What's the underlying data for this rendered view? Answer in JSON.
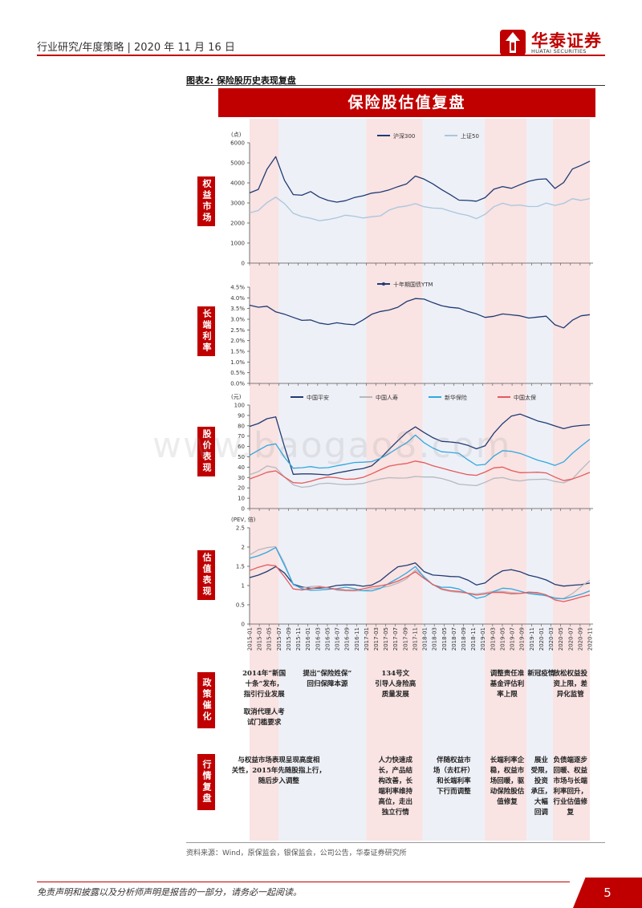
{
  "header": {
    "text": "行业研究/年度策略 | 2020 年 11 月 16 日"
  },
  "logo": {
    "cn": "华泰证券",
    "en": "HUATAI SECURITIES",
    "color": "#c00000"
  },
  "figure": {
    "label": "图表2:  保险股历史表现复盘",
    "banner": "保险股估值复盘"
  },
  "watermark": "www.baogao8.com",
  "colors": {
    "accent": "#c00000",
    "shade": "#f9e3e3",
    "shade_alt": "#eef0f7",
    "hs300": "#1f3b73",
    "sz50": "#a9c6dc",
    "yield": "#1f3b73",
    "pingan": "#1f3b73",
    "life": "#b6b8c0",
    "xinhua": "#2fa8e0",
    "cpic": "#e55a5a"
  },
  "chart_data": [
    {
      "type": "line",
      "section_label": "权益市场",
      "unit_label": "(点)",
      "y_ticks": [
        "0",
        "1000",
        "2000",
        "3000",
        "4000",
        "5000",
        "6000"
      ],
      "ylim": [
        0,
        6000
      ],
      "series": [
        {
          "name": "沪深300",
          "key": "hs300",
          "values": [
            3500,
            3600,
            4600,
            5300,
            4200,
            3500,
            3400,
            3500,
            3200,
            3100,
            3100,
            3200,
            3300,
            3300,
            3400,
            3500,
            3700,
            3900,
            4000,
            4300,
            4100,
            3900,
            3700,
            3500,
            3200,
            3100,
            3000,
            3200,
            3700,
            3900,
            3800,
            3900,
            4000,
            4100,
            4200,
            3800,
            4100,
            4700,
            4800,
            5000
          ]
        },
        {
          "name": "上证50",
          "key": "sz50",
          "values": [
            2500,
            2700,
            3100,
            3300,
            2900,
            2400,
            2300,
            2300,
            2200,
            2200,
            2200,
            2300,
            2300,
            2300,
            2400,
            2400,
            2600,
            2700,
            2800,
            3000,
            2900,
            2800,
            2700,
            2500,
            2400,
            2400,
            2300,
            2500,
            2800,
            2900,
            2800,
            2900,
            2900,
            2900,
            3000,
            2800,
            2900,
            3200,
            3200,
            3300
          ]
        }
      ]
    },
    {
      "type": "line",
      "section_label": "长端利率",
      "y_ticks": [
        "0.0%",
        "0.5%",
        "1.0%",
        "1.5%",
        "2.0%",
        "2.5%",
        "3.0%",
        "3.5%",
        "4.0%",
        "4.5%"
      ],
      "ylim": [
        0,
        4.5
      ],
      "series": [
        {
          "name": "十年期国债YTM",
          "key": "yield",
          "values": [
            3.6,
            3.5,
            3.6,
            3.4,
            3.3,
            3.1,
            2.9,
            2.9,
            2.8,
            2.8,
            2.9,
            2.8,
            2.7,
            2.9,
            3.2,
            3.4,
            3.5,
            3.6,
            3.8,
            3.9,
            3.9,
            3.8,
            3.7,
            3.6,
            3.5,
            3.3,
            3.2,
            3.1,
            3.2,
            3.3,
            3.2,
            3.1,
            3.0,
            3.1,
            3.2,
            2.8,
            2.6,
            2.9,
            3.1,
            3.2
          ]
        }
      ]
    },
    {
      "type": "line",
      "section_label": "股价表现",
      "unit_label": "(元)",
      "y_ticks": [
        "0",
        "10",
        "20",
        "30",
        "40",
        "50",
        "60",
        "70",
        "80",
        "90",
        "100"
      ],
      "ylim": [
        0,
        100
      ],
      "series": [
        {
          "name": "中国平安",
          "key": "pingan",
          "values": [
            78,
            82,
            88,
            90,
            60,
            32,
            32,
            33,
            34,
            34,
            35,
            35,
            36,
            38,
            42,
            50,
            58,
            65,
            72,
            78,
            74,
            70,
            66,
            64,
            62,
            60,
            58,
            62,
            74,
            82,
            88,
            90,
            88,
            86,
            84,
            80,
            76,
            78,
            80,
            82
          ]
        },
        {
          "name": "中国人寿",
          "key": "life",
          "values": [
            34,
            36,
            40,
            38,
            30,
            24,
            22,
            22,
            23,
            23,
            23,
            24,
            25,
            25,
            26,
            27,
            29,
            30,
            31,
            32,
            30,
            29,
            28,
            27,
            25,
            24,
            22,
            24,
            28,
            30,
            29,
            28,
            28,
            27,
            27,
            26,
            26,
            30,
            38,
            45
          ]
        },
        {
          "name": "新华保险",
          "key": "xinhua",
          "values": [
            50,
            56,
            62,
            64,
            50,
            38,
            38,
            40,
            40,
            41,
            42,
            42,
            43,
            44,
            46,
            50,
            54,
            58,
            62,
            70,
            64,
            60,
            56,
            54,
            52,
            46,
            42,
            44,
            52,
            56,
            54,
            52,
            50,
            48,
            46,
            42,
            44,
            52,
            60,
            68
          ]
        },
        {
          "name": "中国太保",
          "key": "cpic",
          "values": [
            30,
            32,
            34,
            35,
            30,
            26,
            26,
            27,
            28,
            29,
            29,
            29,
            30,
            31,
            33,
            36,
            40,
            43,
            45,
            47,
            44,
            40,
            38,
            37,
            36,
            34,
            32,
            34,
            38,
            40,
            38,
            36,
            35,
            34,
            33,
            30,
            28,
            30,
            32,
            34
          ]
        }
      ]
    },
    {
      "type": "line",
      "section_label": "估值表现",
      "unit_label": "(PEV, 倍)",
      "y_ticks": [
        "0",
        "0.5",
        "1",
        "1.5",
        "2",
        "2.5"
      ],
      "ylim": [
        0,
        2.5
      ],
      "series": [
        {
          "name": "中国平安",
          "key": "pingan",
          "values": [
            1.2,
            1.3,
            1.4,
            1.5,
            1.3,
            1.0,
            0.95,
            0.95,
            0.97,
            0.97,
            0.98,
            0.98,
            1.0,
            1.0,
            1.05,
            1.15,
            1.3,
            1.45,
            1.5,
            1.6,
            1.4,
            1.3,
            1.25,
            1.2,
            1.2,
            1.15,
            1.05,
            1.1,
            1.25,
            1.35,
            1.38,
            1.36,
            1.3,
            1.25,
            1.15,
            1.0,
            0.95,
            1.0,
            1.05,
            1.1
          ]
        },
        {
          "name": "中国人寿",
          "key": "life",
          "values": [
            1.8,
            1.9,
            1.95,
            2.0,
            1.6,
            1.05,
            0.95,
            0.95,
            0.95,
            0.93,
            0.9,
            0.9,
            0.88,
            0.85,
            0.88,
            0.92,
            1.0,
            1.1,
            1.2,
            1.4,
            1.2,
            1.0,
            0.9,
            0.88,
            0.85,
            0.8,
            0.75,
            0.78,
            0.85,
            0.88,
            0.85,
            0.8,
            0.78,
            0.75,
            0.72,
            0.68,
            0.7,
            0.8,
            0.95,
            1.1
          ]
        },
        {
          "name": "新华保险",
          "key": "xinhua",
          "values": [
            1.7,
            1.8,
            1.9,
            2.0,
            1.5,
            1.0,
            0.9,
            0.9,
            0.92,
            0.92,
            0.9,
            0.92,
            0.9,
            0.88,
            0.9,
            0.95,
            1.05,
            1.15,
            1.3,
            1.5,
            1.25,
            1.05,
            0.95,
            0.92,
            0.88,
            0.8,
            0.7,
            0.75,
            0.85,
            0.9,
            0.88,
            0.85,
            0.82,
            0.8,
            0.75,
            0.65,
            0.62,
            0.7,
            0.8,
            0.9
          ]
        },
        {
          "name": "中国太保",
          "key": "cpic",
          "values": [
            1.4,
            1.45,
            1.5,
            1.5,
            1.25,
            0.95,
            0.9,
            0.9,
            0.92,
            0.92,
            0.92,
            0.92,
            0.9,
            0.9,
            0.93,
            0.97,
            1.05,
            1.15,
            1.25,
            1.35,
            1.15,
            1.0,
            0.92,
            0.9,
            0.88,
            0.8,
            0.72,
            0.75,
            0.82,
            0.85,
            0.82,
            0.8,
            0.8,
            0.78,
            0.75,
            0.65,
            0.62,
            0.65,
            0.68,
            0.72
          ]
        }
      ]
    }
  ],
  "x_ticks": [
    "2015-01",
    "2015-03",
    "2015-05",
    "2015-07",
    "2015-09",
    "2015-11",
    "2016-01",
    "2016-03",
    "2016-05",
    "2016-07",
    "2016-09",
    "2016-11",
    "2017-01",
    "2017-03",
    "2017-05",
    "2017-07",
    "2017-09",
    "2017-11",
    "2018-01",
    "2018-03",
    "2018-05",
    "2018-07",
    "2018-09",
    "2018-11",
    "2019-01",
    "2019-03",
    "2019-05",
    "2019-07",
    "2019-09",
    "2019-11",
    "2020-01",
    "2020-03",
    "2020-05",
    "2020-07",
    "2020-09",
    "2020-11"
  ],
  "shaded_periods": [
    {
      "from": 0,
      "to": 3,
      "kind": "red"
    },
    {
      "from": 3,
      "to": 12,
      "kind": "blue"
    },
    {
      "from": 12,
      "to": 17.8,
      "kind": "red"
    },
    {
      "from": 17.8,
      "to": 24.2,
      "kind": "blue"
    },
    {
      "from": 24.2,
      "to": 28.5,
      "kind": "red"
    },
    {
      "from": 28.5,
      "to": 31.2,
      "kind": "blue"
    },
    {
      "from": 31.2,
      "to": 35,
      "kind": "red"
    }
  ],
  "policy": {
    "label": "政策催化",
    "notes": [
      {
        "lines": [
          "2014年“新国",
          "十条”发布，",
          "指引行业发展"
        ],
        "col": 1.5
      },
      {
        "lines": [
          "取消代理人考",
          "试门槛要求"
        ],
        "col": 1.5,
        "row": 2
      },
      {
        "lines": [
          "提出“保险姓保”",
          "回归保障本源"
        ],
        "col": 8
      },
      {
        "lines": [
          "134号文",
          "引导人身险高",
          "质量发展"
        ],
        "col": 15
      },
      {
        "lines": [
          "调整责任准",
          "基金评估利",
          "率上限"
        ],
        "col": 26.5
      },
      {
        "lines": [
          "新冠疫情"
        ],
        "col": 30
      },
      {
        "lines": [
          "放松权益投",
          "资上限，差",
          "异化监管"
        ],
        "col": 33
      }
    ]
  },
  "trend": {
    "label": "行情复盘",
    "notes": [
      {
        "lines": [
          "与权益市场表现呈现高度相",
          "关性，2015年先随股指上行，",
          "随后步入调整"
        ],
        "col": 3
      },
      {
        "lines": [
          "人力快速成",
          "长，产品结",
          "构改善，长",
          "端利率维持",
          "高位，走出",
          "独立行情"
        ],
        "col": 15
      },
      {
        "lines": [
          "伴随权益市",
          "场（去杠杆）",
          "和长端利率",
          "下行而调整"
        ],
        "col": 21
      },
      {
        "lines": [
          "长端利率企",
          "稳，权益市",
          "场回暖，驱",
          "动保险股估",
          "值修复"
        ],
        "col": 26.5
      },
      {
        "lines": [
          "展业",
          "受限，",
          "投资",
          "承压，",
          "大幅",
          "回调"
        ],
        "col": 30
      },
      {
        "lines": [
          "负债端逐步",
          "回暖、权益",
          "市场与长端",
          "利率回升，",
          "行业估值修",
          "复"
        ],
        "col": 33
      }
    ]
  },
  "source": "资料来源：Wind，原保监会，银保监会，公司公告，华泰证券研究所",
  "footer": {
    "disclaimer": "免责声明和披露以及分析师声明是报告的一部分，请务必一起阅读。",
    "page": "5"
  }
}
